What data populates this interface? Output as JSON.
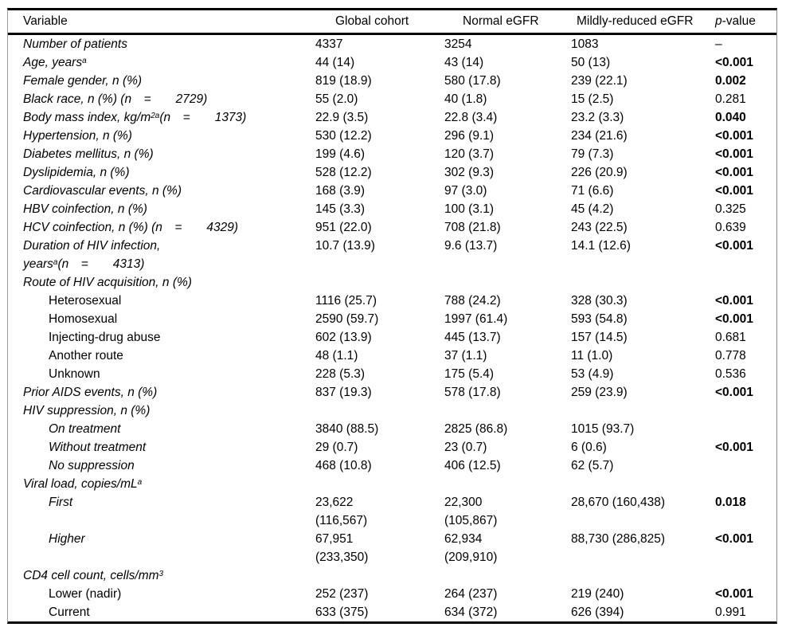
{
  "table": {
    "header": {
      "variable": "Variable",
      "global_cohort": "Global cohort",
      "normal_egfr": "Normal eGFR",
      "mildly_reduced": "Mildly-reduced eGFR",
      "p_italic": "p",
      "p_rest": "-value"
    },
    "rows": [
      {
        "label_lines": [
          [
            {
              "t": "Number of patients"
            }
          ]
        ],
        "italic": true,
        "indent": false,
        "cells": [
          [
            "4337"
          ],
          [
            "3254"
          ],
          [
            "1083"
          ]
        ],
        "p": "–",
        "p_bold": false
      },
      {
        "label_lines": [
          [
            {
              "t": "Age, years"
            },
            {
              "t": "a",
              "sup": true
            }
          ]
        ],
        "italic": true,
        "indent": false,
        "cells": [
          [
            "44 (14)"
          ],
          [
            "43 (14)"
          ],
          [
            "50 (13)"
          ]
        ],
        "p": "<0.001",
        "p_bold": true
      },
      {
        "label_lines": [
          [
            {
              "t": "Female gender, n (%)"
            }
          ]
        ],
        "italic": true,
        "indent": false,
        "cells": [
          [
            "819 (18.9)"
          ],
          [
            "580 (17.8)"
          ],
          [
            "239 (22.1)"
          ]
        ],
        "p": "0.002",
        "p_bold": true
      },
      {
        "label_lines": [
          [
            {
              "t": "Black race, n (%) (n =  2729)"
            }
          ]
        ],
        "italic": true,
        "indent": false,
        "cells": [
          [
            "55 (2.0)"
          ],
          [
            "40 (1.8)"
          ],
          [
            "15 (2.5)"
          ]
        ],
        "p": "0.281",
        "p_bold": false
      },
      {
        "label_lines": [
          [
            {
              "t": "Body mass index, kg/m"
            },
            {
              "t": "2a",
              "sup": true
            },
            {
              "t": "(n =  1373)"
            }
          ]
        ],
        "italic": true,
        "indent": false,
        "cells": [
          [
            "22.9 (3.5)"
          ],
          [
            "22.8 (3.4)"
          ],
          [
            "23.2 (3.3)"
          ]
        ],
        "p": "0.040",
        "p_bold": true
      },
      {
        "label_lines": [
          [
            {
              "t": "Hypertension, n (%)"
            }
          ]
        ],
        "italic": true,
        "indent": false,
        "cells": [
          [
            "530 (12.2)"
          ],
          [
            "296 (9.1)"
          ],
          [
            "234 (21.6)"
          ]
        ],
        "p": "<0.001",
        "p_bold": true
      },
      {
        "label_lines": [
          [
            {
              "t": "Diabetes mellitus, n (%)"
            }
          ]
        ],
        "italic": true,
        "indent": false,
        "cells": [
          [
            "199 (4.6)"
          ],
          [
            "120 (3.7)"
          ],
          [
            "79 (7.3)"
          ]
        ],
        "p": "<0.001",
        "p_bold": true
      },
      {
        "label_lines": [
          [
            {
              "t": "Dyslipidemia, n (%)"
            }
          ]
        ],
        "italic": true,
        "indent": false,
        "cells": [
          [
            "528 (12.2)"
          ],
          [
            "302 (9.3)"
          ],
          [
            "226 (20.9)"
          ]
        ],
        "p": "<0.001",
        "p_bold": true
      },
      {
        "label_lines": [
          [
            {
              "t": "Cardiovascular events, n (%)"
            }
          ]
        ],
        "italic": true,
        "indent": false,
        "cells": [
          [
            "168 (3.9)"
          ],
          [
            "97 (3.0)"
          ],
          [
            "71 (6.6)"
          ]
        ],
        "p": "<0.001",
        "p_bold": true
      },
      {
        "label_lines": [
          [
            {
              "t": "HBV coinfection, n (%)"
            }
          ]
        ],
        "italic": true,
        "indent": false,
        "cells": [
          [
            "145 (3.3)"
          ],
          [
            "100 (3.1)"
          ],
          [
            "45 (4.2)"
          ]
        ],
        "p": "0.325",
        "p_bold": false
      },
      {
        "label_lines": [
          [
            {
              "t": "HCV coinfection, n (%) (n =  4329)"
            }
          ]
        ],
        "italic": true,
        "indent": false,
        "cells": [
          [
            "951 (22.0)"
          ],
          [
            "708 (21.8)"
          ],
          [
            "243 (22.5)"
          ]
        ],
        "p": "0.639",
        "p_bold": false
      },
      {
        "label_lines": [
          [
            {
              "t": "Duration of HIV infection,"
            }
          ],
          [
            {
              "t": "years"
            },
            {
              "t": "a",
              "sup": true
            },
            {
              "t": "(n =  4313)"
            }
          ]
        ],
        "italic": true,
        "indent": false,
        "cells": [
          [
            "10.7 (13.9)"
          ],
          [
            "9.6 (13.7)"
          ],
          [
            "14.1 (12.6)"
          ]
        ],
        "p": "<0.001",
        "p_bold": true
      },
      {
        "label_lines": [
          [
            {
              "t": "Route of HIV acquisition, n (%)"
            }
          ]
        ],
        "italic": true,
        "indent": false,
        "cells": [
          [],
          [],
          []
        ],
        "p": "",
        "p_bold": false
      },
      {
        "label_lines": [
          [
            {
              "t": "Heterosexual"
            }
          ]
        ],
        "italic": false,
        "indent": true,
        "cells": [
          [
            "1116 (25.7)"
          ],
          [
            "788 (24.2)"
          ],
          [
            "328 (30.3)"
          ]
        ],
        "p": "<0.001",
        "p_bold": true
      },
      {
        "label_lines": [
          [
            {
              "t": "Homosexual"
            }
          ]
        ],
        "italic": false,
        "indent": true,
        "cells": [
          [
            "2590 (59.7)"
          ],
          [
            "1997 (61.4)"
          ],
          [
            "593 (54.8)"
          ]
        ],
        "p": "<0.001",
        "p_bold": true
      },
      {
        "label_lines": [
          [
            {
              "t": "Injecting-drug abuse"
            }
          ]
        ],
        "italic": false,
        "indent": true,
        "cells": [
          [
            "602 (13.9)"
          ],
          [
            "445 (13.7)"
          ],
          [
            "157 (14.5)"
          ]
        ],
        "p": "0.681",
        "p_bold": false
      },
      {
        "label_lines": [
          [
            {
              "t": "Another route"
            }
          ]
        ],
        "italic": false,
        "indent": true,
        "cells": [
          [
            "48 (1.1)"
          ],
          [
            "37 (1.1)"
          ],
          [
            "11 (1.0)"
          ]
        ],
        "p": "0.778",
        "p_bold": false
      },
      {
        "label_lines": [
          [
            {
              "t": "Unknown"
            }
          ]
        ],
        "italic": false,
        "indent": true,
        "cells": [
          [
            "228 (5.3)"
          ],
          [
            "175 (5.4)"
          ],
          [
            "53 (4.9)"
          ]
        ],
        "p": "0.536",
        "p_bold": false
      },
      {
        "label_lines": [
          [
            {
              "t": "Prior AIDS events, n (%)"
            }
          ]
        ],
        "italic": true,
        "indent": false,
        "cells": [
          [
            "837 (19.3)"
          ],
          [
            "578 (17.8)"
          ],
          [
            "259 (23.9)"
          ]
        ],
        "p": "<0.001",
        "p_bold": true
      },
      {
        "label_lines": [
          [
            {
              "t": "HIV suppression, n (%)"
            }
          ]
        ],
        "italic": true,
        "indent": false,
        "cells": [
          [],
          [],
          []
        ],
        "p": "",
        "p_bold": false
      },
      {
        "label_lines": [
          [
            {
              "t": "On treatment"
            }
          ]
        ],
        "italic": true,
        "indent": true,
        "cells": [
          [
            "3840 (88.5)"
          ],
          [
            "2825 (86.8)"
          ],
          [
            "1015 (93.7)"
          ]
        ],
        "p": "",
        "p_bold": false
      },
      {
        "label_lines": [
          [
            {
              "t": "Without treatment"
            }
          ]
        ],
        "italic": true,
        "indent": true,
        "cells": [
          [
            "29 (0.7)"
          ],
          [
            "23 (0.7)"
          ],
          [
            "6 (0.6)"
          ]
        ],
        "p": "<0.001",
        "p_bold": true
      },
      {
        "label_lines": [
          [
            {
              "t": "No suppression"
            }
          ]
        ],
        "italic": true,
        "indent": true,
        "cells": [
          [
            "468 (10.8)"
          ],
          [
            "406 (12.5)"
          ],
          [
            "62 (5.7)"
          ]
        ],
        "p": "",
        "p_bold": false
      },
      {
        "label_lines": [
          [
            {
              "t": "Viral load, copies/mL"
            },
            {
              "t": "a",
              "sup": true
            }
          ]
        ],
        "italic": true,
        "indent": false,
        "cells": [
          [],
          [],
          []
        ],
        "p": "",
        "p_bold": false
      },
      {
        "label_lines": [
          [
            {
              "t": "First"
            }
          ]
        ],
        "italic": true,
        "indent": true,
        "cells": [
          [
            "23,622",
            "(116,567)"
          ],
          [
            "22,300",
            "(105,867)"
          ],
          [
            "28,670 (160,438)"
          ]
        ],
        "p": "0.018",
        "p_bold": true
      },
      {
        "label_lines": [
          [
            {
              "t": "Higher"
            }
          ]
        ],
        "italic": true,
        "indent": true,
        "cells": [
          [
            "67,951",
            "(233,350)"
          ],
          [
            "62,934",
            "(209,910)"
          ],
          [
            "88,730 (286,825)"
          ]
        ],
        "p": "<0.001",
        "p_bold": true
      },
      {
        "label_lines": [
          [
            {
              "t": "CD4 cell count, cells/mm"
            },
            {
              "t": "3",
              "sup": true
            }
          ]
        ],
        "italic": true,
        "indent": false,
        "cells": [
          [],
          [],
          []
        ],
        "p": "",
        "p_bold": false
      },
      {
        "label_lines": [
          [
            {
              "t": "Lower (nadir)"
            }
          ]
        ],
        "italic": false,
        "indent": true,
        "cells": [
          [
            "252 (237)"
          ],
          [
            "264 (237)"
          ],
          [
            "219 (240)"
          ]
        ],
        "p": "<0.001",
        "p_bold": true
      },
      {
        "label_lines": [
          [
            {
              "t": "Current"
            }
          ]
        ],
        "italic": false,
        "indent": true,
        "cells": [
          [
            "633 (375)"
          ],
          [
            "634 (372)"
          ],
          [
            "626 (394)"
          ]
        ],
        "p": "0.991",
        "p_bold": false
      }
    ]
  }
}
